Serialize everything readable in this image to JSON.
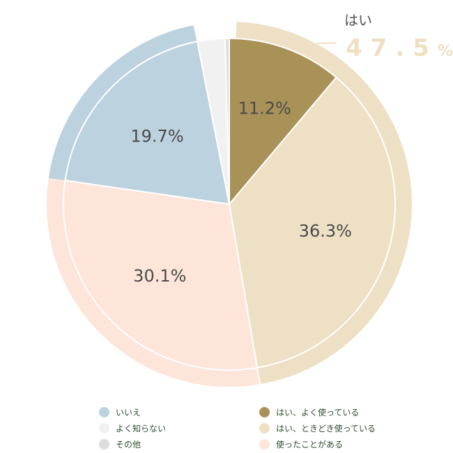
{
  "chart_data": {
    "type": "pie",
    "group_highlight": {
      "label": "はい",
      "value": "47.5",
      "unit": "%"
    },
    "slices": [
      {
        "name": "はい、よく使っている",
        "value": 11.2,
        "label": "11.2%",
        "color": "#a89257"
      },
      {
        "name": "はい、ときどき使っている",
        "value": 36.3,
        "label": "36.3%",
        "color": "#eee0c5"
      },
      {
        "name": "使ったことがある",
        "value": 30.1,
        "label": "30.1%",
        "color": "#fde5d9"
      },
      {
        "name": "いいえ",
        "value": 19.7,
        "label": "19.7%",
        "color": "#bdd2df"
      },
      {
        "name": "よく知らない",
        "value": 2.7,
        "label": "",
        "color": "#f1f1f1"
      },
      {
        "name": "その他",
        "value": 0.4,
        "label": "",
        "color": "#dcdcdc"
      }
    ],
    "legend": [
      {
        "label": "いいえ",
        "color": "#bdd2df"
      },
      {
        "label": "はい、よく使っている",
        "color": "#a89257"
      },
      {
        "label": "よく知らない",
        "color": "#f1f1f1"
      },
      {
        "label": "はい、ときどき使っている",
        "color": "#eee0c5"
      },
      {
        "label": "その他",
        "color": "#dcdcdc"
      },
      {
        "label": "使ったことがある",
        "color": "#fde5d9"
      }
    ]
  }
}
